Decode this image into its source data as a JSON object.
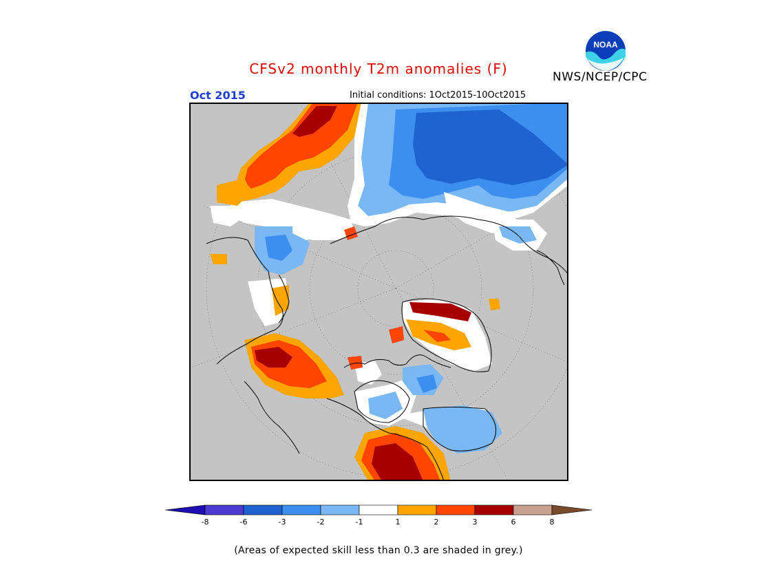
{
  "header": {
    "title": "CFSv2 monthly T2m anomalies (F)",
    "period": "Oct 2015",
    "initial_conditions": "Initial conditions: 1Oct2015-10Oct2015",
    "agency": "NWS/NCEP/CPC",
    "logo_text": "NOAA"
  },
  "colorbar": {
    "ticks": [
      "-8",
      "-6",
      "-3",
      "-2",
      "-1",
      "1",
      "2",
      "3",
      "6",
      "8"
    ],
    "colors": [
      "#1e0db0",
      "#4b3bd0",
      "#1f63d0",
      "#3d8fef",
      "#7ab7f5",
      "#ffffff",
      "#ffa500",
      "#ff4500",
      "#a60000",
      "#c8a090",
      "#7a4a2c"
    ],
    "bins": [
      "< -8",
      "-8 to -6",
      "-6 to -3",
      "-3 to -2",
      "-2 to -1",
      "-1 to 1",
      "1 to 2",
      "2 to 3",
      "3 to 6",
      "6 to 8",
      "> 8"
    ]
  },
  "map": {
    "projection": "north polar stereographic",
    "no_skill_color": "#c4c4c4",
    "coastline_color": "#000000"
  },
  "footnote": "(Areas of expected skill less than 0.3 are shaded in grey.)"
}
